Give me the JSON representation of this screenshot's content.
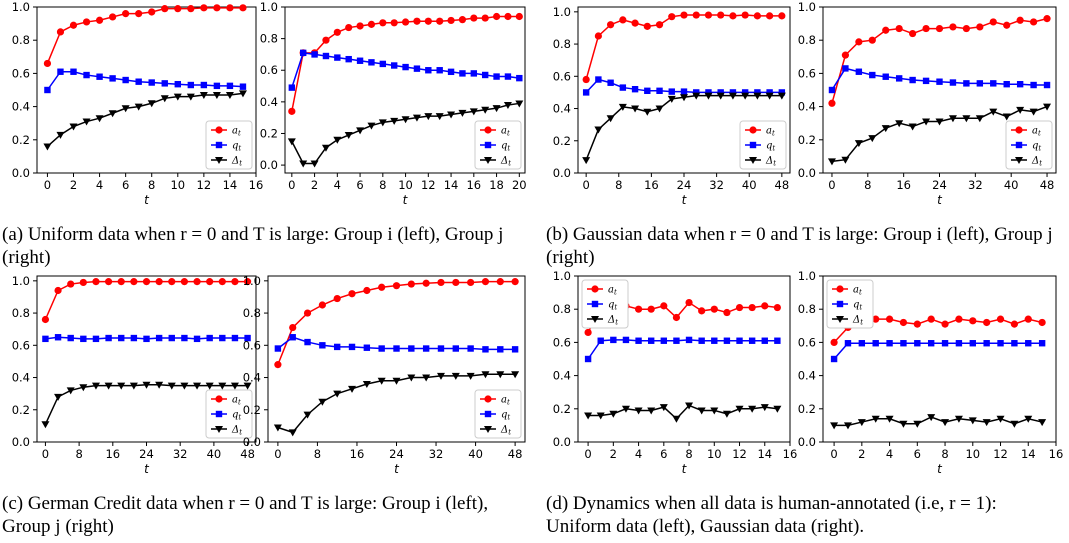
{
  "colors": {
    "a": "#ff0000",
    "q": "#0000ff",
    "d": "#000000"
  },
  "captions": [
    {
      "text": "(a) Uniform data when r = 0 and T is large: Group i (left), Group j (right)"
    },
    {
      "text": "(b) Gaussian data when r = 0 and T is large: Group i (left), Group j (right)"
    },
    {
      "text": "(c) German Credit data when r = 0 and T is large: Group i (left), Group j (right)"
    },
    {
      "text": "(d) Dynamics when all data is human-annotated (i.e, r = 1): Uniform data (left), Gaussian data (right)."
    }
  ],
  "chart_data": [
    {
      "id": "a-left",
      "type": "line",
      "xlabel": "t",
      "ylim": [
        0,
        1.0
      ],
      "xlim": [
        -0.8,
        16
      ],
      "xticks": [
        0,
        2,
        4,
        6,
        8,
        10,
        12,
        14,
        16
      ],
      "yticks": [
        0,
        0.2,
        0.4,
        0.6,
        0.8,
        1.0
      ],
      "legend": "bottom-right",
      "x": [
        0,
        1,
        2,
        3,
        4,
        5,
        6,
        7,
        8,
        9,
        10,
        11,
        12,
        13,
        14,
        15
      ],
      "series": [
        {
          "name": "a_t",
          "marker": "circle",
          "values": [
            0.66,
            0.85,
            0.89,
            0.91,
            0.92,
            0.94,
            0.96,
            0.96,
            0.97,
            0.99,
            0.99,
            0.99,
            0.995,
            0.995,
            0.995,
            0.995
          ]
        },
        {
          "name": "q_t",
          "marker": "square",
          "values": [
            0.5,
            0.61,
            0.61,
            0.59,
            0.58,
            0.57,
            0.56,
            0.55,
            0.545,
            0.54,
            0.535,
            0.53,
            0.53,
            0.525,
            0.525,
            0.52
          ]
        },
        {
          "name": "Δ_t",
          "marker": "triangle",
          "values": [
            0.16,
            0.23,
            0.28,
            0.31,
            0.33,
            0.36,
            0.39,
            0.4,
            0.42,
            0.45,
            0.46,
            0.46,
            0.47,
            0.47,
            0.47,
            0.48
          ]
        }
      ]
    },
    {
      "id": "a-right",
      "type": "line",
      "xlabel": "t",
      "ylim": [
        -0.05,
        1.0
      ],
      "xlim": [
        -0.6,
        20.5
      ],
      "xticks": [
        0,
        2,
        4,
        6,
        8,
        10,
        12,
        14,
        16,
        18,
        20
      ],
      "yticks": [
        0,
        0.2,
        0.4,
        0.6,
        0.8,
        1.0
      ],
      "legend": "bottom-right",
      "x": [
        0,
        1,
        2,
        3,
        4,
        5,
        6,
        7,
        8,
        9,
        10,
        11,
        12,
        13,
        14,
        15,
        16,
        17,
        18,
        19,
        20
      ],
      "series": [
        {
          "name": "a_t",
          "marker": "circle",
          "values": [
            0.34,
            0.71,
            0.71,
            0.79,
            0.84,
            0.87,
            0.88,
            0.89,
            0.9,
            0.9,
            0.905,
            0.91,
            0.91,
            0.91,
            0.915,
            0.92,
            0.93,
            0.93,
            0.94,
            0.94,
            0.94
          ]
        },
        {
          "name": "q_t",
          "marker": "square",
          "values": [
            0.49,
            0.71,
            0.7,
            0.69,
            0.68,
            0.67,
            0.66,
            0.65,
            0.64,
            0.63,
            0.62,
            0.61,
            0.6,
            0.6,
            0.59,
            0.58,
            0.58,
            0.57,
            0.56,
            0.56,
            0.55
          ]
        },
        {
          "name": "Δ_t",
          "marker": "triangle",
          "values": [
            0.15,
            0.01,
            0.01,
            0.11,
            0.16,
            0.19,
            0.22,
            0.25,
            0.27,
            0.28,
            0.29,
            0.3,
            0.31,
            0.31,
            0.32,
            0.33,
            0.34,
            0.35,
            0.36,
            0.38,
            0.39
          ]
        }
      ]
    },
    {
      "id": "b-left",
      "type": "line",
      "xlabel": "t",
      "ylim": [
        0,
        1.03
      ],
      "xlim": [
        -2,
        50
      ],
      "xticks": [
        0,
        8,
        16,
        24,
        32,
        40,
        48
      ],
      "yticks": [
        0,
        0.2,
        0.4,
        0.6,
        0.8,
        1.0
      ],
      "legend": "bottom-right",
      "x": [
        0,
        3,
        6,
        9,
        12,
        15,
        18,
        21,
        24,
        27,
        30,
        33,
        36,
        39,
        42,
        45,
        48
      ],
      "series": [
        {
          "name": "a_t",
          "marker": "circle",
          "values": [
            0.58,
            0.85,
            0.92,
            0.95,
            0.93,
            0.91,
            0.92,
            0.97,
            0.98,
            0.98,
            0.98,
            0.98,
            0.975,
            0.98,
            0.975,
            0.975,
            0.975
          ]
        },
        {
          "name": "q_t",
          "marker": "square",
          "values": [
            0.5,
            0.58,
            0.56,
            0.53,
            0.52,
            0.51,
            0.51,
            0.505,
            0.505,
            0.5,
            0.5,
            0.5,
            0.5,
            0.5,
            0.5,
            0.5,
            0.5
          ]
        },
        {
          "name": "Δ_t",
          "marker": "triangle",
          "values": [
            0.08,
            0.27,
            0.34,
            0.41,
            0.4,
            0.38,
            0.4,
            0.46,
            0.47,
            0.48,
            0.48,
            0.48,
            0.48,
            0.48,
            0.48,
            0.48,
            0.48
          ]
        }
      ]
    },
    {
      "id": "b-right",
      "type": "line",
      "xlabel": "t",
      "ylim": [
        0,
        1.0
      ],
      "xlim": [
        -2,
        50
      ],
      "xticks": [
        0,
        8,
        16,
        24,
        32,
        40,
        48
      ],
      "yticks": [
        0,
        0.2,
        0.4,
        0.6,
        0.8,
        1.0
      ],
      "legend": "bottom-right",
      "x": [
        0,
        3,
        6,
        9,
        12,
        15,
        18,
        21,
        24,
        27,
        30,
        33,
        36,
        39,
        42,
        45,
        48
      ],
      "series": [
        {
          "name": "a_t",
          "marker": "circle",
          "values": [
            0.42,
            0.71,
            0.79,
            0.8,
            0.86,
            0.87,
            0.84,
            0.87,
            0.87,
            0.88,
            0.87,
            0.88,
            0.91,
            0.89,
            0.92,
            0.91,
            0.93
          ]
        },
        {
          "name": "q_t",
          "marker": "square",
          "values": [
            0.5,
            0.63,
            0.61,
            0.59,
            0.58,
            0.57,
            0.56,
            0.555,
            0.55,
            0.545,
            0.54,
            0.54,
            0.54,
            0.535,
            0.535,
            0.53,
            0.53
          ]
        },
        {
          "name": "Δ_t",
          "marker": "triangle",
          "values": [
            0.07,
            0.08,
            0.18,
            0.21,
            0.27,
            0.3,
            0.28,
            0.31,
            0.31,
            0.33,
            0.33,
            0.33,
            0.37,
            0.34,
            0.38,
            0.37,
            0.4
          ]
        }
      ]
    },
    {
      "id": "c-left",
      "type": "line",
      "xlabel": "t",
      "ylim": [
        0,
        1.03
      ],
      "xlim": [
        -2,
        50
      ],
      "xticks": [
        0,
        8,
        16,
        24,
        32,
        40,
        48
      ],
      "yticks": [
        0,
        0.2,
        0.4,
        0.6,
        0.8,
        1.0
      ],
      "legend": "bottom-right",
      "x": [
        0,
        3,
        6,
        9,
        12,
        15,
        18,
        21,
        24,
        27,
        30,
        33,
        36,
        39,
        42,
        45,
        48
      ],
      "series": [
        {
          "name": "a_t",
          "marker": "circle",
          "values": [
            0.76,
            0.94,
            0.98,
            0.99,
            0.995,
            0.995,
            0.995,
            0.995,
            0.995,
            0.995,
            0.995,
            0.995,
            0.995,
            0.995,
            0.995,
            0.995,
            0.995
          ]
        },
        {
          "name": "q_t",
          "marker": "square",
          "values": [
            0.64,
            0.65,
            0.645,
            0.64,
            0.64,
            0.645,
            0.645,
            0.645,
            0.64,
            0.645,
            0.645,
            0.645,
            0.64,
            0.645,
            0.645,
            0.645,
            0.645
          ]
        },
        {
          "name": "Δ_t",
          "marker": "triangle",
          "values": [
            0.11,
            0.28,
            0.32,
            0.34,
            0.35,
            0.35,
            0.35,
            0.35,
            0.355,
            0.355,
            0.35,
            0.35,
            0.35,
            0.35,
            0.35,
            0.35,
            0.35
          ]
        }
      ]
    },
    {
      "id": "c-right",
      "type": "line",
      "xlabel": "t",
      "ylim": [
        0,
        1.03
      ],
      "xlim": [
        -2,
        50
      ],
      "xticks": [
        0,
        8,
        16,
        24,
        32,
        40,
        48
      ],
      "yticks": [
        0,
        0.2,
        0.4,
        0.6,
        0.8,
        1.0
      ],
      "legend": "bottom-right",
      "x": [
        0,
        3,
        6,
        9,
        12,
        15,
        18,
        21,
        24,
        27,
        30,
        33,
        36,
        39,
        42,
        45,
        48
      ],
      "series": [
        {
          "name": "a_t",
          "marker": "circle",
          "values": [
            0.48,
            0.71,
            0.8,
            0.85,
            0.89,
            0.92,
            0.94,
            0.96,
            0.97,
            0.98,
            0.985,
            0.99,
            0.99,
            0.99,
            0.995,
            0.995,
            0.995
          ]
        },
        {
          "name": "q_t",
          "marker": "square",
          "values": [
            0.58,
            0.65,
            0.62,
            0.6,
            0.59,
            0.59,
            0.585,
            0.58,
            0.58,
            0.58,
            0.58,
            0.58,
            0.58,
            0.58,
            0.575,
            0.575,
            0.575
          ]
        },
        {
          "name": "Δ_t",
          "marker": "triangle",
          "values": [
            0.09,
            0.06,
            0.17,
            0.25,
            0.3,
            0.33,
            0.36,
            0.38,
            0.38,
            0.4,
            0.4,
            0.41,
            0.41,
            0.41,
            0.42,
            0.42,
            0.42
          ]
        }
      ]
    },
    {
      "id": "d-left",
      "type": "line",
      "xlabel": "t",
      "ylim": [
        0,
        1.0
      ],
      "xlim": [
        -0.8,
        16
      ],
      "xticks": [
        0,
        2,
        4,
        6,
        8,
        10,
        12,
        14,
        16
      ],
      "yticks": [
        0,
        0.2,
        0.4,
        0.6,
        0.8,
        1.0
      ],
      "legend": "top-left",
      "x": [
        0,
        1,
        2,
        3,
        4,
        5,
        6,
        7,
        8,
        9,
        10,
        11,
        12,
        13,
        14,
        15
      ],
      "series": [
        {
          "name": "a_t",
          "marker": "circle",
          "values": [
            0.66,
            0.81,
            0.79,
            0.82,
            0.8,
            0.8,
            0.82,
            0.75,
            0.84,
            0.79,
            0.8,
            0.78,
            0.81,
            0.81,
            0.82,
            0.81
          ]
        },
        {
          "name": "q_t",
          "marker": "square",
          "values": [
            0.5,
            0.61,
            0.615,
            0.615,
            0.61,
            0.61,
            0.61,
            0.61,
            0.615,
            0.61,
            0.61,
            0.61,
            0.61,
            0.61,
            0.61,
            0.61
          ]
        },
        {
          "name": "Δ_t",
          "marker": "triangle",
          "values": [
            0.16,
            0.16,
            0.17,
            0.2,
            0.19,
            0.19,
            0.21,
            0.14,
            0.22,
            0.19,
            0.19,
            0.17,
            0.2,
            0.2,
            0.21,
            0.2
          ]
        }
      ]
    },
    {
      "id": "d-right",
      "type": "line",
      "xlabel": "t",
      "ylim": [
        0,
        1.0
      ],
      "xlim": [
        -0.8,
        16
      ],
      "xticks": [
        0,
        2,
        4,
        6,
        8,
        10,
        12,
        14,
        16
      ],
      "yticks": [
        0,
        0.2,
        0.4,
        0.6,
        0.8,
        1.0
      ],
      "legend": "top-left",
      "x": [
        0,
        1,
        2,
        3,
        4,
        5,
        6,
        7,
        8,
        9,
        10,
        11,
        12,
        13,
        14,
        15
      ],
      "series": [
        {
          "name": "a_t",
          "marker": "circle",
          "values": [
            0.6,
            0.69,
            0.72,
            0.74,
            0.74,
            0.72,
            0.71,
            0.74,
            0.71,
            0.74,
            0.73,
            0.72,
            0.74,
            0.71,
            0.74,
            0.72
          ]
        },
        {
          "name": "q_t",
          "marker": "square",
          "values": [
            0.5,
            0.595,
            0.595,
            0.595,
            0.595,
            0.595,
            0.595,
            0.595,
            0.595,
            0.595,
            0.595,
            0.595,
            0.595,
            0.595,
            0.595,
            0.595
          ]
        },
        {
          "name": "Δ_t",
          "marker": "triangle",
          "values": [
            0.1,
            0.1,
            0.12,
            0.14,
            0.14,
            0.11,
            0.11,
            0.15,
            0.12,
            0.14,
            0.13,
            0.12,
            0.14,
            0.11,
            0.14,
            0.12
          ]
        }
      ]
    }
  ]
}
